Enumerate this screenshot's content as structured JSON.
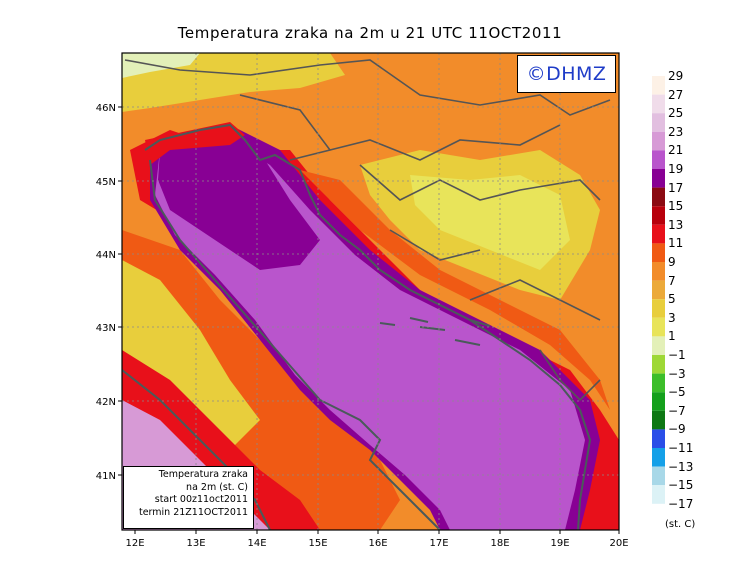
{
  "title": "Temperatura zraka na 2m u 21 UTC 11OCT2011",
  "logo": "©DHMZ",
  "info_box": [
    "Temperatura zraka",
    "na 2m (st. C)",
    "start 00z11oct2011",
    "termin 21Z11OCT2011"
  ],
  "legend": {
    "unit": "(st. C)",
    "levels": [
      {
        "value": "29",
        "color": "#fdf1e6"
      },
      {
        "value": "27",
        "color": "#f0dcea"
      },
      {
        "value": "25",
        "color": "#e2bfe0"
      },
      {
        "value": "23",
        "color": "#d79ad6"
      },
      {
        "value": "21",
        "color": "#b955cc"
      },
      {
        "value": "19",
        "color": "#880094"
      },
      {
        "value": "17",
        "color": "#8b0a12"
      },
      {
        "value": "15",
        "color": "#b8000c"
      },
      {
        "value": "13",
        "color": "#e8101a"
      },
      {
        "value": "11",
        "color": "#f05a14"
      },
      {
        "value": "9",
        "color": "#f28c2a"
      },
      {
        "value": "7",
        "color": "#ecaa3a"
      },
      {
        "value": "5",
        "color": "#e8ce3c"
      },
      {
        "value": "3",
        "color": "#e8e45a"
      },
      {
        "value": "1",
        "color": "#e3f0b8"
      },
      {
        "value": "−1",
        "color": "#9ed836"
      },
      {
        "value": "−3",
        "color": "#3cbe2a"
      },
      {
        "value": "−5",
        "color": "#14a01c"
      },
      {
        "value": "−7",
        "color": "#0e7814"
      },
      {
        "value": "−9",
        "color": "#2a4ee8"
      },
      {
        "value": "−11",
        "color": "#14a0e8"
      },
      {
        "value": "−13",
        "color": "#a8d8e8"
      },
      {
        "value": "−15",
        "color": "#dcf2f6"
      },
      {
        "value": "−17",
        "color": "#ffffff"
      }
    ]
  },
  "map": {
    "lon_labels": [
      "12E",
      "13E",
      "14E",
      "15E",
      "16E",
      "17E",
      "18E",
      "19E",
      "20E"
    ],
    "lat_labels": [
      "46N",
      "45N",
      "44N",
      "43N",
      "42N",
      "41N"
    ]
  }
}
